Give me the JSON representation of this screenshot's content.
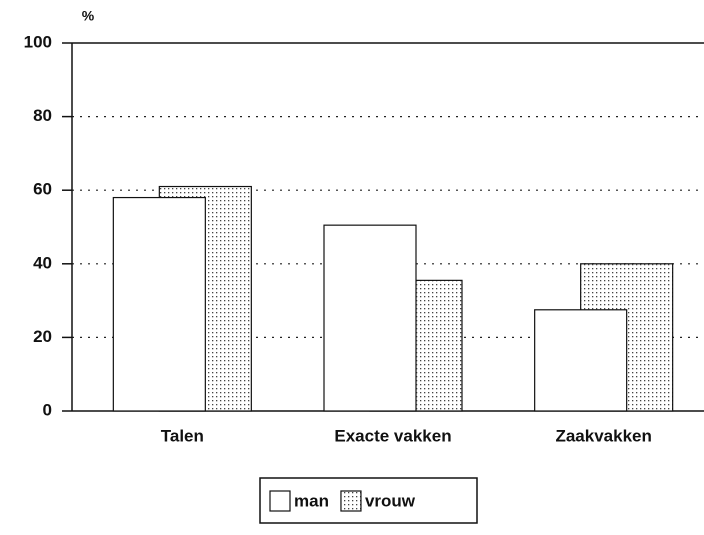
{
  "chart_data": {
    "type": "bar",
    "ylabel": "%",
    "categories": [
      "Talen",
      "Exacte vakken",
      "Zaakvakken"
    ],
    "series": [
      {
        "name": "man",
        "color": "#ffffff",
        "values": [
          58,
          50.5,
          27.5
        ]
      },
      {
        "name": "vrouw",
        "color": "#ffffff",
        "pattern": "dotted",
        "values": [
          61,
          35.5,
          40
        ]
      }
    ],
    "ylim": [
      0,
      100
    ],
    "yticks": [
      0,
      20,
      40,
      60,
      80,
      100
    ],
    "grid": true,
    "legend": "bottom"
  }
}
